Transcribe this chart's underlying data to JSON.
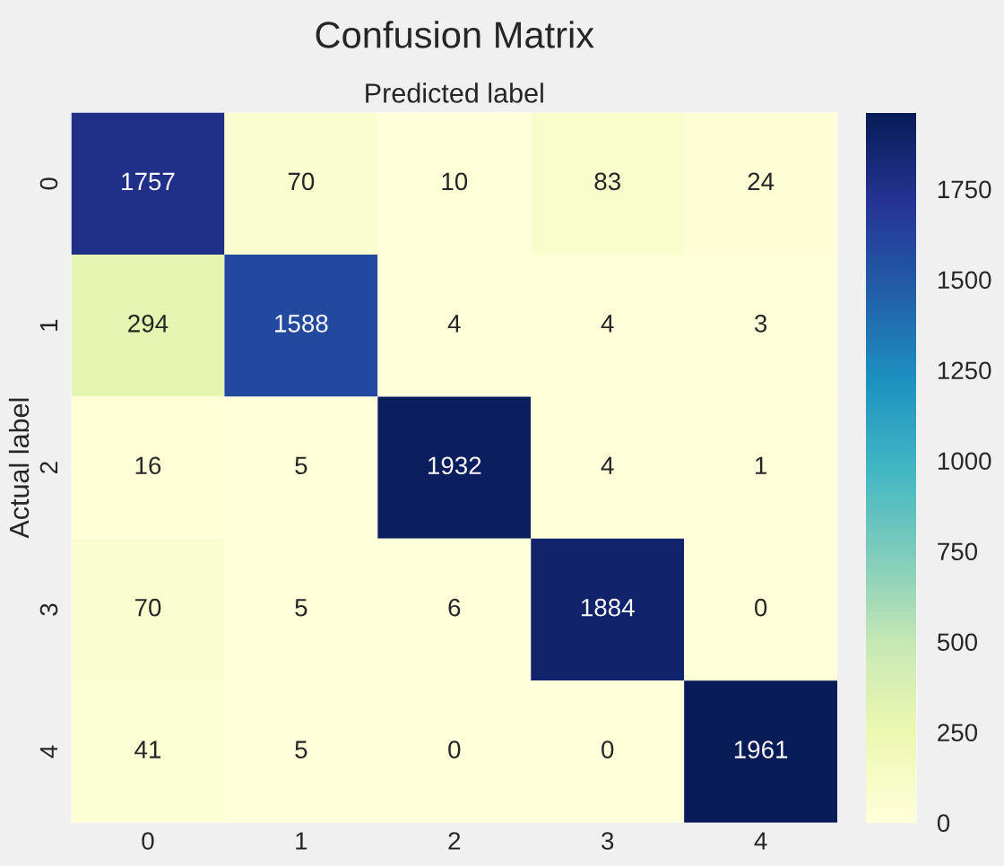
{
  "chart_data": {
    "type": "heatmap",
    "title": "Confusion Matrix",
    "xlabel": "Predicted label",
    "ylabel": "Actual label",
    "categories": [
      "0",
      "1",
      "2",
      "3",
      "4"
    ],
    "y_categories": [
      "0",
      "1",
      "2",
      "3",
      "4"
    ],
    "cells": [
      [
        1757,
        70,
        10,
        83,
        24
      ],
      [
        294,
        1588,
        4,
        4,
        3
      ],
      [
        16,
        5,
        1932,
        4,
        1
      ],
      [
        70,
        5,
        6,
        1884,
        0
      ],
      [
        41,
        5,
        0,
        0,
        1961
      ]
    ],
    "clim": [
      0,
      1961
    ],
    "cticks": [
      0,
      250,
      500,
      750,
      1000,
      1250,
      1500,
      1750
    ],
    "data_labels": true,
    "grid": false
  }
}
